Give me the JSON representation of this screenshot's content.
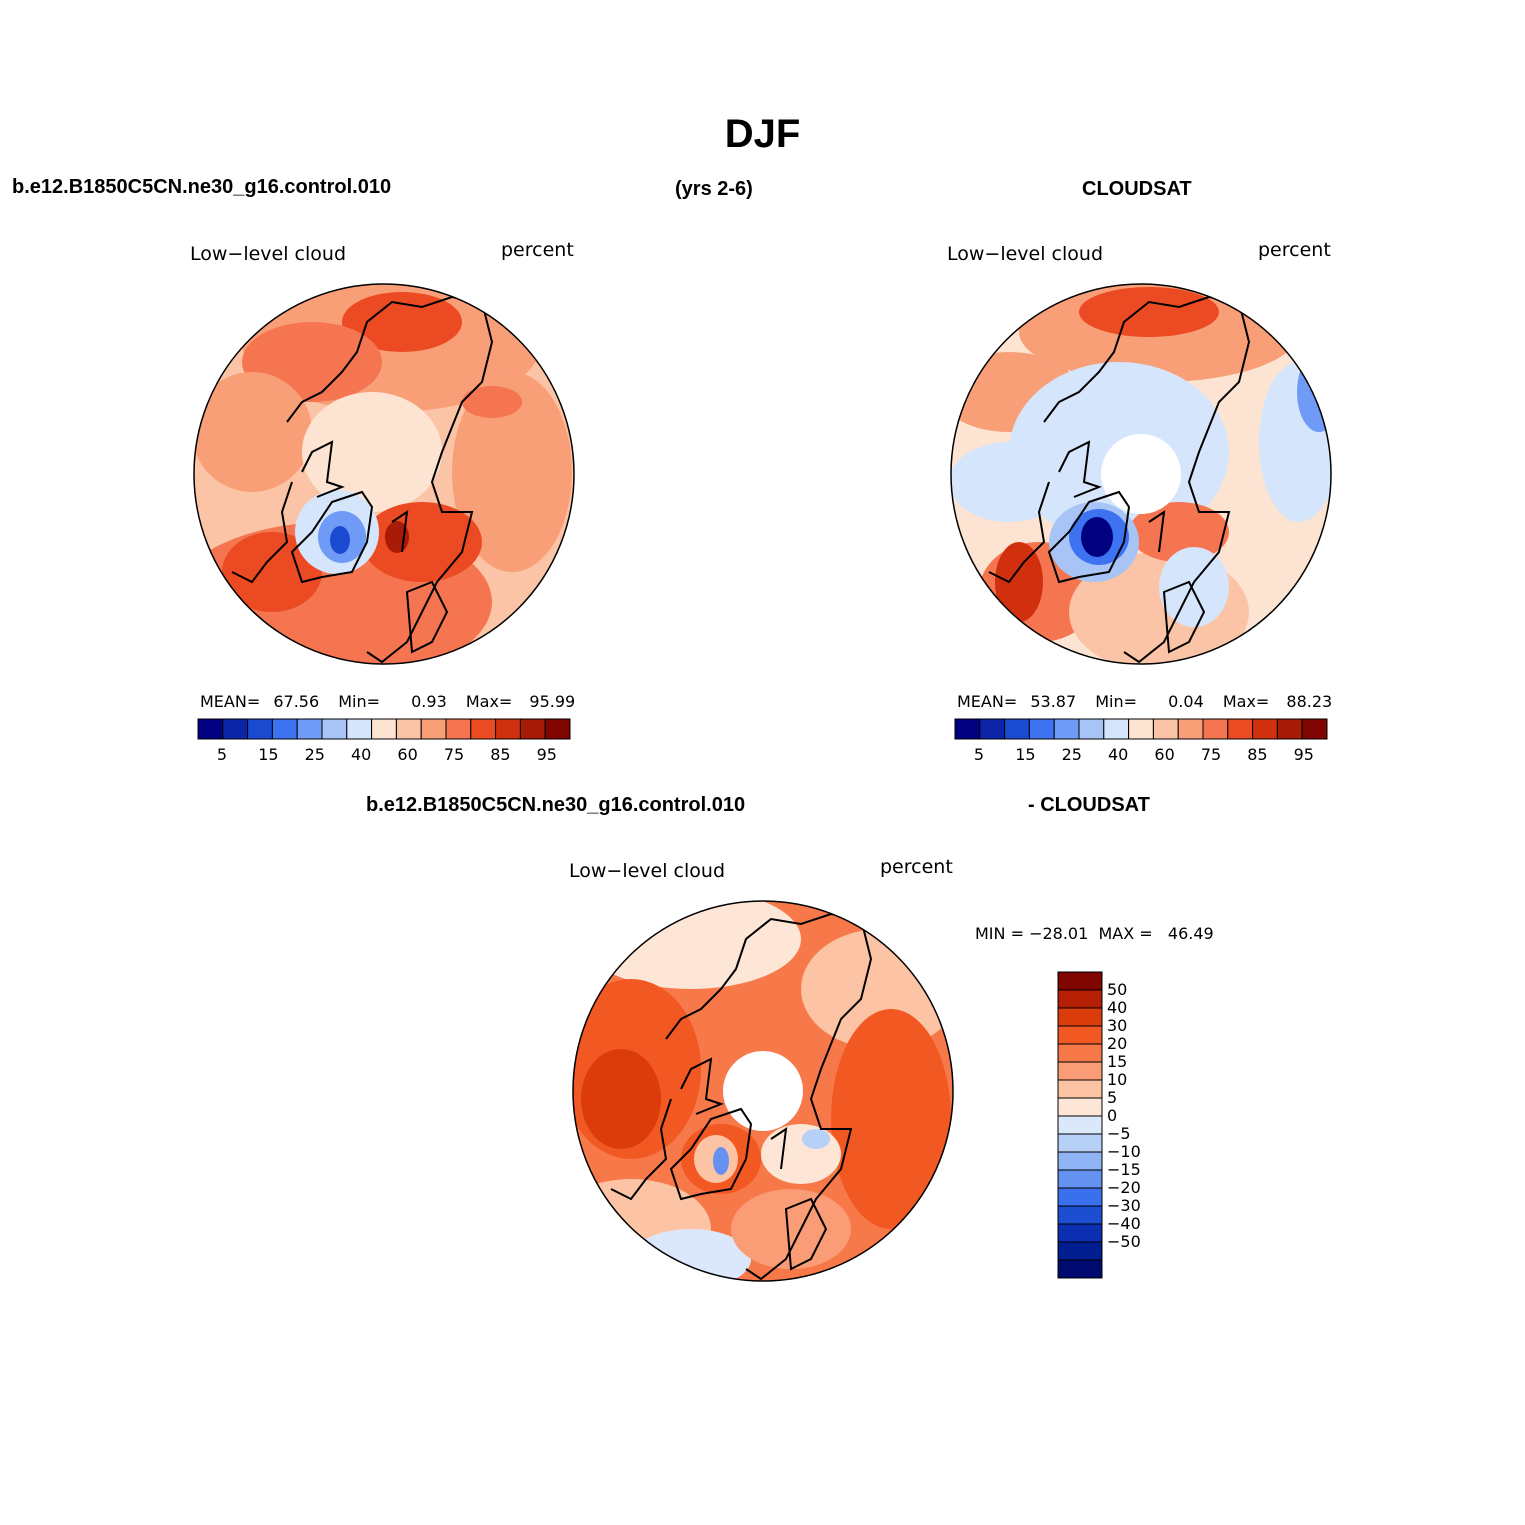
{
  "title": "DJF",
  "header": {
    "case": "b.e12.B1850C5CN.ne30_g16.control.010",
    "years": "(yrs 2-6)",
    "obs": "CLOUDSAT"
  },
  "panels": {
    "model": {
      "left_label": "Low−level cloud",
      "right_label": "percent",
      "stats": {
        "mean_label": "MEAN=",
        "mean": "67.56",
        "min_label": "Min=",
        "min": "0.93",
        "max_label": "Max=",
        "max": "95.99"
      }
    },
    "obs": {
      "left_label": "Low−level cloud",
      "right_label": "percent",
      "stats": {
        "mean_label": "MEAN=",
        "mean": "53.87",
        "min_label": "Min=",
        "min": "0.04",
        "max_label": "Max=",
        "max": "88.23"
      }
    },
    "diff": {
      "title_left": "b.e12.B1850C5CN.ne30_g16.control.010",
      "title_right": "- CLOUDSAT",
      "left_label": "Low−level cloud",
      "right_label": "percent",
      "minmax": "MIN = −28.01  MAX =   46.49"
    }
  },
  "colorbar_abs": {
    "colors": [
      "#000080",
      "#0b24a8",
      "#1a4ad0",
      "#3d73f0",
      "#6f9af5",
      "#a8c4f7",
      "#d5e5fb",
      "#fde4d2",
      "#fcc4a6",
      "#f99f78",
      "#f47550",
      "#ec4a22",
      "#d0300e",
      "#a81b06",
      "#7f0500"
    ],
    "labels": [
      "5",
      "15",
      "25",
      "40",
      "60",
      "75",
      "85",
      "95"
    ]
  },
  "colorbar_diff": {
    "colors": [
      "#7f0500",
      "#b51f04",
      "#dc3b0c",
      "#f25822",
      "#f7794a",
      "#fa9c76",
      "#fcc3a5",
      "#fde6d6",
      "#dbe8fb",
      "#b7d0f8",
      "#8fb3f5",
      "#6592f1",
      "#3a70ed",
      "#1c4ed2",
      "#0b2fb0",
      "#001e90",
      "#000a70"
    ],
    "labels": [
      "50",
      "40",
      "30",
      "20",
      "15",
      "10",
      "5",
      "0",
      "−5",
      "−10",
      "−15",
      "−20",
      "−30",
      "−40",
      "−50"
    ]
  },
  "map_colors": {
    "outline": "#000000",
    "coast": "#000000"
  }
}
